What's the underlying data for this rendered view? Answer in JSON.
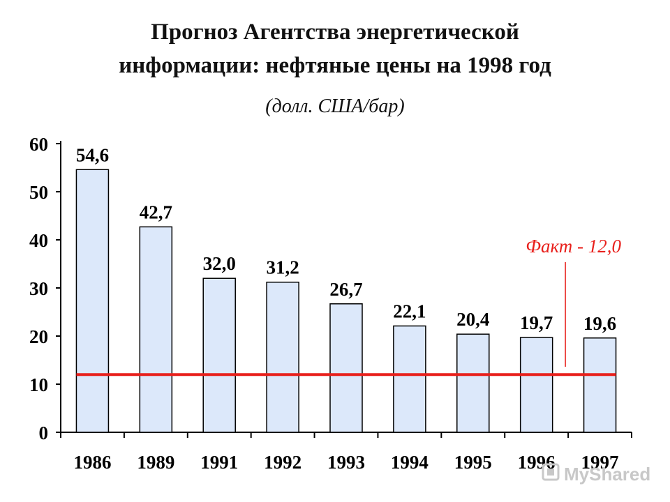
{
  "title_line1": "Прогноз Агентства энергетической",
  "title_line2": "информации: нефтяные цены на 1998 год",
  "subtitle": "(долл. США/бар)",
  "annotation": "Факт - 12,0",
  "watermark": "MyShared",
  "colors": {
    "bar_fill": "#dce8fa",
    "bar_stroke": "#000000",
    "reference_line": "#e8201c",
    "annotation": "#e8201c"
  },
  "chart_data": {
    "type": "bar",
    "categories": [
      "1986",
      "1989",
      "1991",
      "1992",
      "1993",
      "1994",
      "1995",
      "1996",
      "1997"
    ],
    "values": [
      54.6,
      42.7,
      32.0,
      31.2,
      26.7,
      22.1,
      20.4,
      19.7,
      19.6
    ],
    "value_labels": [
      "54,6",
      "42,7",
      "32,0",
      "31,2",
      "26,7",
      "22,1",
      "20,4",
      "19,7",
      "19,6"
    ],
    "ylim": [
      0,
      60
    ],
    "yticks": [
      0,
      10,
      20,
      30,
      40,
      50,
      60
    ],
    "reference_value": 12.0,
    "grid": false,
    "legend": "none"
  }
}
